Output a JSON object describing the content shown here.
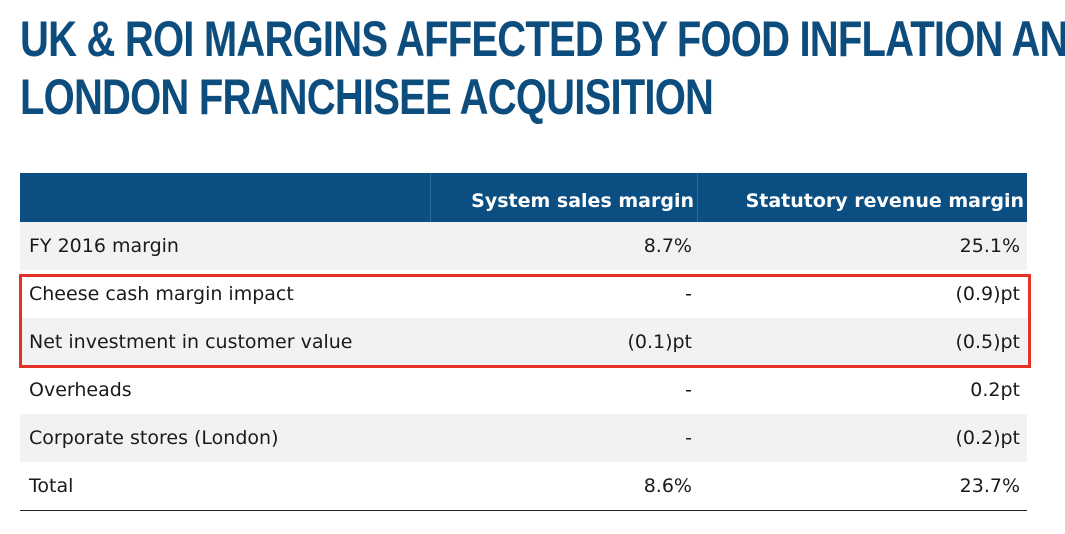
{
  "title": {
    "line1": "UK & ROI MARGINS AFFECTED BY FOOD INFLATION AND",
    "line2": "LONDON FRANCHISEE ACQUISITION"
  },
  "table": {
    "headers": [
      "",
      "System sales margin",
      "Statutory revenue margin"
    ],
    "rows": [
      {
        "label": "FY 2016 margin",
        "system": "8.7%",
        "statutory": "25.1%"
      },
      {
        "label": "Cheese cash margin impact",
        "system": "-",
        "statutory": "(0.9)pt"
      },
      {
        "label": "Net investment in customer value",
        "system": "(0.1)pt",
        "statutory": "(0.5)pt"
      },
      {
        "label": "Overheads",
        "system": "-",
        "statutory": "0.2pt"
      },
      {
        "label": "Corporate stores (London)",
        "system": "-",
        "statutory": "(0.2)pt"
      },
      {
        "label": "Total",
        "system": "8.6%",
        "statutory": "23.7%"
      }
    ]
  },
  "colors": {
    "title": "#0d4d7e",
    "header_bg": "#0b4f82",
    "highlight_border": "#e53228",
    "row_shade": "#f2f2f2"
  }
}
